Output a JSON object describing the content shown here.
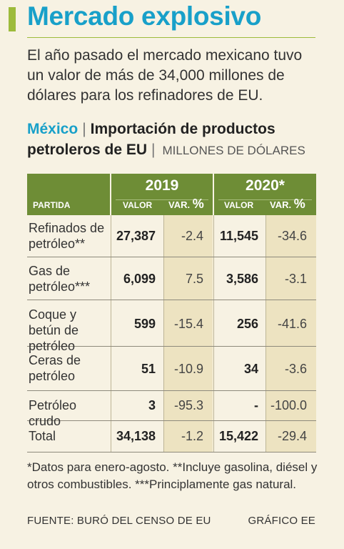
{
  "headline": "Mercado explosivo",
  "lede": "El año pasado el mercado mexicano tuvo un valor de más de 34,000 millones de dólares para los refinadores de EU.",
  "subtitle": {
    "country": "México",
    "title": "Importación de productos petroleros de EU",
    "units": "MILLONES DE DÓLARES"
  },
  "table": {
    "years": [
      "2019",
      "2020*"
    ],
    "col_partida": "PARTIDA",
    "col_valor": "VALOR",
    "col_var": "VAR.",
    "col_pct": "%",
    "rows": [
      {
        "label": "Refinados de petróleo**",
        "v2019": "27,387",
        "var2019": "-2.4",
        "v2020": "11,545",
        "var2020": "-34.6"
      },
      {
        "label": "Gas de petróleo***",
        "v2019": "6,099",
        "var2019": "7.5",
        "v2020": "3,586",
        "var2020": "-3.1"
      },
      {
        "label": "Coque y betún de petróleo",
        "v2019": "599",
        "var2019": "-15.4",
        "v2020": "256",
        "var2020": "-41.6"
      },
      {
        "label": "Ceras de petróleo",
        "v2019": "51",
        "var2019": "-10.9",
        "v2020": "34",
        "var2020": "-3.6"
      },
      {
        "label": "Petróleo crudo",
        "v2019": "3",
        "var2019": "-95.3",
        "v2020": "-",
        "var2020": "-100.0"
      },
      {
        "label": "Total",
        "v2019": "34,138",
        "var2019": "-1.2",
        "v2020": "15,422",
        "var2020": "-29.4"
      }
    ]
  },
  "footnote": "*Datos para enero-agosto. **Incluye gasolina, diésel y otros combustibles. ***Principlamente gas natural.",
  "source": "FUENTE: BURÓ DEL CENSO DE EU",
  "credit": "GRÁFICO EE",
  "colors": {
    "accent": "#18a0c9",
    "header": "#6e8d36",
    "accent_bar": "#9dbb3b",
    "shade": "#ede3c1",
    "background": "#f7f2e3"
  }
}
